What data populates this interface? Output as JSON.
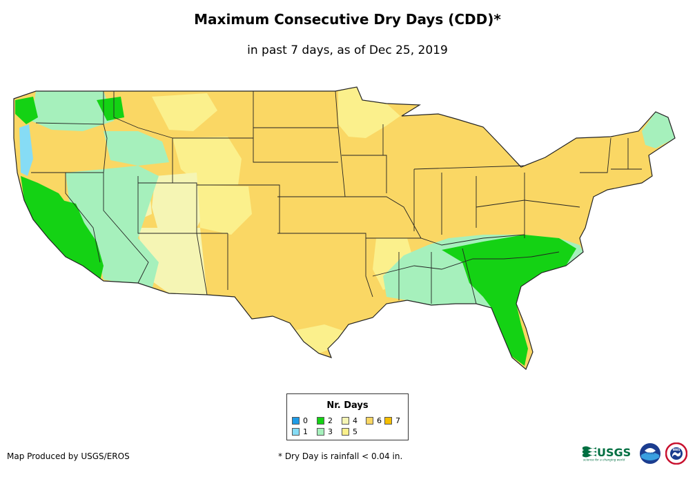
{
  "header": {
    "title": "Maximum Consecutive Dry Days (CDD)*",
    "subtitle": "in past 7 days, as of Dec 25, 2019"
  },
  "legend": {
    "title": "Nr. Days",
    "items": [
      {
        "label": "0",
        "color": "#1e9be6"
      },
      {
        "label": "1",
        "color": "#86dcf5"
      },
      {
        "label": "2",
        "color": "#14d214"
      },
      {
        "label": "3",
        "color": "#a6f0bc"
      },
      {
        "label": "4",
        "color": "#f5f5b4"
      },
      {
        "label": "5",
        "color": "#fbf08c"
      },
      {
        "label": "6",
        "color": "#fad764"
      },
      {
        "label": "7",
        "color": "#f5be00"
      }
    ]
  },
  "footer": {
    "credit": "Map Produced by USGS/EROS",
    "note": "* Dry Day is rainfall < 0.04 in.",
    "logos": {
      "usgs": "USGS",
      "usgs_tagline": "science for a changing world",
      "noaa": "noaa",
      "nws": "NWS"
    }
  }
}
